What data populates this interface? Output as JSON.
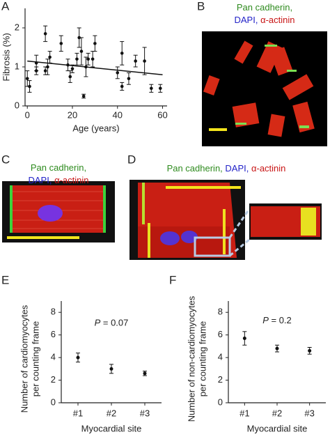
{
  "chart_data": [
    {
      "type": "scatter",
      "xlabel": "Age (years)",
      "ylabel": "Fibrosis (%)",
      "xlim": [
        -1,
        62
      ],
      "ylim": [
        0,
        2.5
      ],
      "xticks": [
        0,
        20,
        40,
        60
      ],
      "yticks": [
        0,
        1,
        2
      ],
      "color": "#111111",
      "x": [
        0,
        1,
        4,
        4,
        8,
        8,
        9,
        10,
        15,
        18,
        19,
        20,
        22,
        23,
        24,
        25,
        26,
        27,
        29,
        30,
        40,
        42,
        42,
        45,
        48,
        52,
        55,
        59
      ],
      "values": [
        0.7,
        0.5,
        0.9,
        1.1,
        1.85,
        0.9,
        1.0,
        1.25,
        1.6,
        1.05,
        0.75,
        0.95,
        1.2,
        1.75,
        1.4,
        0.25,
        1.0,
        1.2,
        1.2,
        1.6,
        0.85,
        1.35,
        0.5,
        0.7,
        1.15,
        1.15,
        0.45,
        0.45
      ],
      "errors": [
        0.2,
        0.15,
        0.1,
        0.2,
        0.2,
        0.1,
        0.2,
        0.15,
        0.2,
        0.15,
        0.15,
        0.1,
        0.15,
        0.25,
        0.35,
        0.05,
        0.25,
        0.15,
        0.2,
        0.2,
        0.15,
        0.3,
        0.1,
        0.15,
        0.15,
        0.35,
        0.1,
        0.1
      ],
      "trendline": {
        "x": [
          0,
          60
        ],
        "y": [
          1.15,
          0.8
        ]
      }
    },
    {
      "type": "errorbar",
      "xlabel": "Myocardial site",
      "ylabel": [
        "Number of cardiomyocytes",
        "per counting frame"
      ],
      "categories": [
        "#1",
        "#2",
        "#3"
      ],
      "values": [
        4.0,
        3.0,
        2.6
      ],
      "errors": [
        0.4,
        0.4,
        0.2
      ],
      "ylim": [
        0,
        9
      ],
      "yticks": [
        0,
        2,
        4,
        6,
        8
      ],
      "color": "#111111",
      "annotation": {
        "italic": "P",
        "text": " = 0.07",
        "x": "#2",
        "y": 7
      }
    },
    {
      "type": "errorbar",
      "xlabel": "Myocardial site",
      "ylabel": [
        "Number of non-cardiomyocytes",
        "per counting frame"
      ],
      "categories": [
        "#1",
        "#2",
        "#3"
      ],
      "values": [
        5.7,
        4.8,
        4.6
      ],
      "errors": [
        0.6,
        0.3,
        0.3
      ],
      "ylim": [
        0,
        9
      ],
      "yticks": [
        0,
        2,
        4,
        6,
        8
      ],
      "color": "#111111",
      "annotation": {
        "italic": "P",
        "text": " = 0.2",
        "x": "#2",
        "y": 7.2
      }
    }
  ],
  "figure": {
    "panel_labels": [
      "A",
      "B",
      "C",
      "D",
      "E",
      "F"
    ],
    "stain_B": [
      [
        {
          "text": "Pan cadherin,",
          "color": "#2e8b1e"
        }
      ],
      [
        {
          "text": "DAPI,",
          "color": "#2323c8"
        },
        {
          "text": " α-actinin",
          "color": "#c81414"
        }
      ]
    ],
    "stain_C": [
      [
        {
          "text": "Pan cadherin,",
          "color": "#2e8b1e"
        }
      ],
      [
        {
          "text": "DAPI,",
          "color": "#2323c8"
        },
        {
          "text": " α-actinin",
          "color": "#c81414"
        }
      ]
    ],
    "stain_D": [
      [
        {
          "text": "Pan cadherin,",
          "color": "#2e8b1e"
        },
        {
          "text": " DAPI,",
          "color": "#2323c8"
        },
        {
          "text": " α-actinin",
          "color": "#c81414"
        }
      ]
    ]
  }
}
